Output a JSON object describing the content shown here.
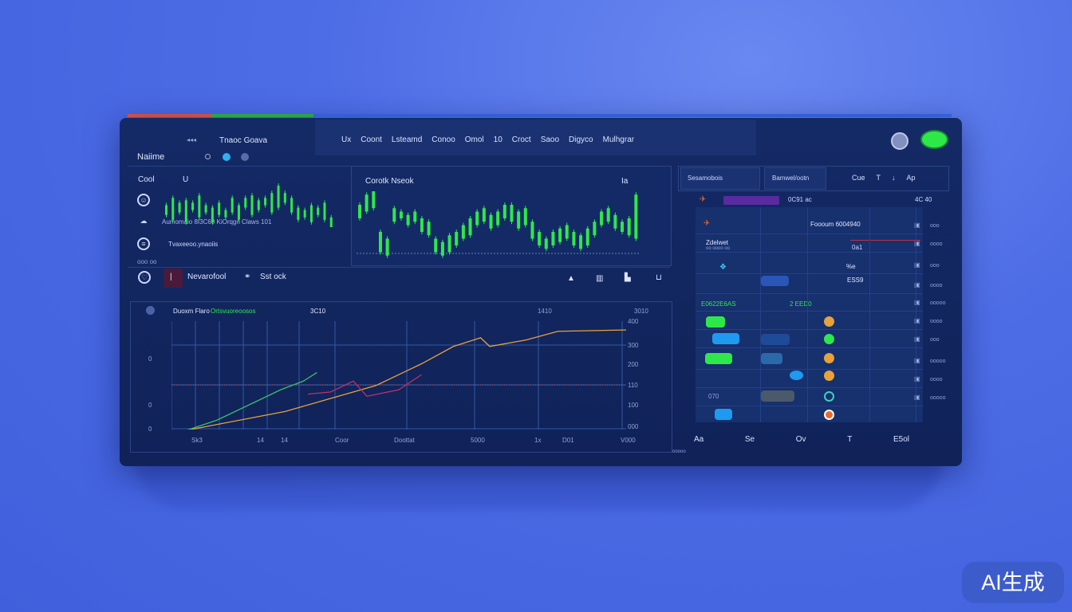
{
  "colors": {
    "accent_green": "#2ee84a",
    "accent_blue": "#1e9bf0",
    "orange": "#e8a23a",
    "magenta": "#c0306a",
    "panel": "#132863"
  },
  "header": {
    "title_left": "Naiime",
    "subtitle": "Tnaoc Goava",
    "nav": [
      "Ux",
      "Coont",
      "Lsteamd",
      "Conoo",
      "Omol",
      "10",
      "Croct",
      "Saoo",
      "Digyco",
      "Mulhgrar"
    ]
  },
  "left": {
    "label_top": "Cool",
    "label_u": "U",
    "row1": "Aumomaio 8I3C60 KiOrqgn Claws 101",
    "row2": "Tvaxeeoo.ynaoiis",
    "row3": "ooo oo",
    "toolbar_a": "Nevarofool",
    "toolbar_b": "Sst ock"
  },
  "main_chart": {
    "title": "Corotk Nseok",
    "corner": "Ia"
  },
  "toolbar_icons": [
    "chart-up-icon",
    "bars-icon",
    "layout-icon",
    "bucket-icon"
  ],
  "line_chart": {
    "legend": "Duoxm Flaro",
    "legend_green": "Ortsvuoreoosos",
    "legend_val": "3C10",
    "top_mid": "1410",
    "top_right": "3010",
    "left_ticks": [
      "0",
      "0",
      "0"
    ],
    "right_ticks": [
      "400",
      "300",
      "200",
      "110",
      "100",
      "000"
    ],
    "x_labels": [
      "Sk3",
      "14",
      "14",
      "Coor",
      "Doottat",
      "5000",
      "1x",
      "D01",
      "V000"
    ]
  },
  "right": {
    "tabs": [
      "Sesamobois",
      "Bamwel/ootn"
    ],
    "tools": [
      "Cue",
      "T",
      "↓",
      "Ap"
    ],
    "row_head": "0C91 ac",
    "row_head_right": "4C 40",
    "title_a": "Foooum 6004940",
    "label_b": "Zdelwet",
    "label_b2": "oo oooo oo",
    "label_c": "0a1",
    "label_d": "%e",
    "label_e": "ESS9",
    "green_head": "E0622E6AS",
    "green_head2": "2 EED0",
    "row_num": "070",
    "right_vals": [
      "ooo",
      "oooo",
      "ooo",
      "oooo",
      "ooooo",
      "oooo",
      "ooo",
      "ooooo",
      "oooo",
      "ooooo"
    ],
    "bottom": [
      "Aa",
      "Se",
      "Ov",
      "T",
      "E5ol"
    ],
    "footer": "ooooo"
  },
  "watermark": "AI生成",
  "chart_data": [
    {
      "type": "bar",
      "name": "mini-candles",
      "values": [
        [
          5,
          9
        ],
        [
          3,
          12
        ],
        [
          6,
          10
        ],
        [
          2,
          11
        ],
        [
          7,
          10
        ],
        [
          4,
          13
        ],
        [
          6,
          9
        ],
        [
          2,
          8
        ],
        [
          5,
          10
        ],
        [
          4,
          7
        ],
        [
          6,
          12
        ],
        [
          3,
          9
        ],
        [
          8,
          12
        ],
        [
          5,
          13
        ],
        [
          7,
          11
        ],
        [
          9,
          12
        ],
        [
          6,
          14
        ],
        [
          8,
          17
        ],
        [
          10,
          14
        ],
        [
          6,
          12
        ],
        [
          3,
          8
        ],
        [
          4,
          7
        ],
        [
          2,
          9
        ],
        [
          5,
          8
        ],
        [
          3,
          10
        ],
        [
          0,
          4
        ]
      ]
    },
    {
      "type": "bar",
      "name": "main-candles",
      "values": [
        [
          60,
          80
        ],
        [
          70,
          95
        ],
        [
          75,
          100
        ],
        [
          10,
          40
        ],
        [
          5,
          30
        ],
        [
          55,
          75
        ],
        [
          60,
          70
        ],
        [
          50,
          65
        ],
        [
          55,
          70
        ],
        [
          40,
          60
        ],
        [
          35,
          55
        ],
        [
          10,
          30
        ],
        [
          5,
          25
        ],
        [
          10,
          35
        ],
        [
          20,
          40
        ],
        [
          30,
          50
        ],
        [
          35,
          60
        ],
        [
          50,
          70
        ],
        [
          55,
          75
        ],
        [
          45,
          65
        ],
        [
          50,
          70
        ],
        [
          60,
          80
        ],
        [
          55,
          80
        ],
        [
          45,
          70
        ],
        [
          50,
          75
        ],
        [
          30,
          55
        ],
        [
          20,
          40
        ],
        [
          15,
          30
        ],
        [
          20,
          40
        ],
        [
          25,
          45
        ],
        [
          30,
          50
        ],
        [
          20,
          40
        ],
        [
          15,
          35
        ],
        [
          20,
          45
        ],
        [
          35,
          55
        ],
        [
          50,
          70
        ],
        [
          55,
          75
        ],
        [
          45,
          65
        ],
        [
          40,
          55
        ],
        [
          35,
          60
        ],
        [
          30,
          95
        ]
      ]
    },
    {
      "type": "line",
      "title": "Duoxm Flaro",
      "ylim": [
        0,
        400
      ],
      "series": [
        {
          "name": "orange",
          "values": [
            [
              0,
              10
            ],
            [
              25,
              60
            ],
            [
              35,
              90
            ],
            [
              45,
              120
            ],
            [
              55,
              170
            ],
            [
              62,
              210
            ],
            [
              68,
              230
            ],
            [
              70,
              210
            ],
            [
              78,
              225
            ],
            [
              85,
              245
            ],
            [
              100,
              248
            ]
          ]
        },
        {
          "name": "green",
          "values": [
            [
              0,
              5
            ],
            [
              10,
              40
            ],
            [
              18,
              80
            ],
            [
              24,
              110
            ],
            [
              29,
              130
            ],
            [
              32,
              150
            ]
          ]
        },
        {
          "name": "magenta",
          "values": [
            [
              30,
              100
            ],
            [
              35,
              105
            ],
            [
              40,
              130
            ],
            [
              43,
              95
            ],
            [
              50,
              110
            ],
            [
              55,
              145
            ]
          ]
        }
      ]
    }
  ]
}
